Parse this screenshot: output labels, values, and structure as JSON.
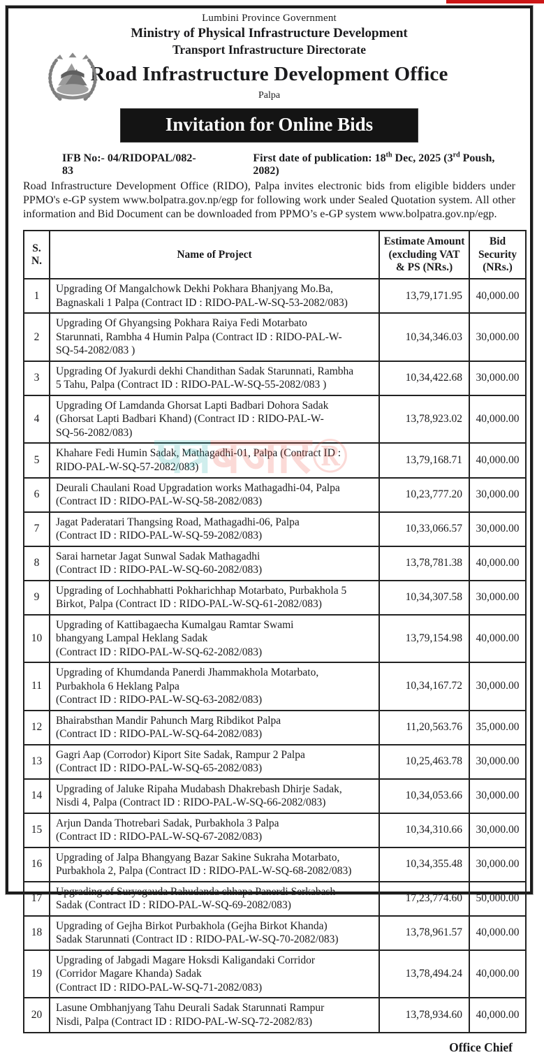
{
  "colors": {
    "banner_background": "#141414",
    "banner_text": "#ffffff",
    "top_bar_red": "#cc1616",
    "watermark_teal": "#2fb6b2",
    "watermark_red": "#ef5a4e",
    "border_black": "#1c1c1c"
  },
  "masthead": {
    "province": "Lumbini Province Government",
    "ministry": "Ministry of Physical Infrastructure Development",
    "directorate": "Transport Infrastructure Directorate",
    "office": "Road Infrastructure Development Office",
    "district": "Palpa",
    "emblem_icon": "nepal-government-emblem"
  },
  "banner": {
    "title": "Invitation for Online Bids"
  },
  "notice": {
    "ifb_no": "IFB No:- 04/RIDOPAL/082-83",
    "pub_prefix": "First date of publication: 18",
    "pub_sup1": "th",
    "pub_mid": " Dec, 2025 (3",
    "pub_sup2": "rd",
    "pub_suffix": "  Poush, 2082)",
    "body": "Road Infrastructure Development Office (RIDO), Palpa invites electronic bids from eligible bidders under PPMO's  e-GP system  www.bolpatra.gov.np/egp for following work under Sealed Quotation system. All other information and Bid Document can be downloaded from PPMO’s e-GP system www.bolpatra.gov.np/egp."
  },
  "table": {
    "headers": {
      "sn": "S.\nN.",
      "project": "Name of Project",
      "estimate": "Estimate Amount\n(excluding VAT\n& PS (NRs.)",
      "security": "Bid\nSecurity\n(NRs.)"
    },
    "rows": [
      {
        "sn": "1",
        "project": "Upgrading Of Mangalchowk Dekhi Pokhara Bhanjyang Mo.Ba,\nBagnaskali 1 Palpa (Contract ID : RIDO-PAL-W-SQ-53-2082/083)",
        "estimate": "13,79,171.95",
        "security": "40,000.00"
      },
      {
        "sn": "2",
        "project": "Upgrading Of  Ghyangsing Pokhara Raiya Fedi Motarbato\nStarunnati, Rambha 4 Humin Palpa (Contract ID : RIDO-PAL-W-\nSQ-54-2082/083 )",
        "estimate": "10,34,346.03",
        "security": "30,000.00"
      },
      {
        "sn": "3",
        "project": "Upgrading Of  Jyakurdi dekhi Chandithan Sadak Starunnati, Rambha\n5 Tahu, Palpa (Contract ID : RIDO-PAL-W-SQ-55-2082/083 )",
        "estimate": "10,34,422.68",
        "security": "30,000.00"
      },
      {
        "sn": "4",
        "project": "Upgrading Of  Lamdanda Ghorsat Lapti Badbari Dohora Sadak\n(Ghorsat Lapti Badbari Khand) (Contract ID : RIDO-PAL-W-\nSQ-56-2082/083)",
        "estimate": "13,78,923.02",
        "security": "40,000.00"
      },
      {
        "sn": "5",
        "project": "Khahare Fedi Humin Sadak, Mathagadhi-01, Palpa (Contract ID :\nRIDO-PAL-W-SQ-57-2082/083)",
        "estimate": "13,79,168.71",
        "security": "40,000.00"
      },
      {
        "sn": "6",
        "project": "Deurali Chaulani Road Upgradation works Mathagadhi-04, Palpa\n(Contract ID : RIDO-PAL-W-SQ-58-2082/083)",
        "estimate": "10,23,777.20",
        "security": "30,000.00"
      },
      {
        "sn": "7",
        "project": "Jagat Paderatari Thangsing Road, Mathagadhi-06, Palpa\n(Contract ID : RIDO-PAL-W-SQ-59-2082/083)",
        "estimate": "10,33,066.57",
        "security": "30,000.00"
      },
      {
        "sn": "8",
        "project": "Sarai harnetar Jagat Sunwal Sadak Mathagadhi\n(Contract ID : RIDO-PAL-W-SQ-60-2082/083)",
        "estimate": "13,78,781.38",
        "security": "40,000.00"
      },
      {
        "sn": "9",
        "project": "Upgrading of Lochhabhatti Pokharichhap Motarbato, Purbakhola 5\nBirkot, Palpa (Contract ID : RIDO-PAL-W-SQ-61-2082/083)",
        "estimate": "10,34,307.58",
        "security": "30,000.00"
      },
      {
        "sn": "10",
        "project": "Upgrading of Kattibagaecha Kumalgau Ramtar Swami\nbhangyang Lampal Heklang Sadak\n(Contract ID : RIDO-PAL-W-SQ-62-2082/083)",
        "estimate": "13,79,154.98",
        "security": "40,000.00"
      },
      {
        "sn": "11",
        "project": "Upgrading of Khumdanda Panerdi Jhammakhola Motarbato,\nPurbakhola 6 Heklang Palpa\n(Contract ID : RIDO-PAL-W-SQ-63-2082/083)",
        "estimate": "10,34,167.72",
        "security": "30,000.00"
      },
      {
        "sn": "12",
        "project": "Bhairabsthan Mandir Pahunch Marg Ribdikot Palpa\n(Contract ID : RIDO-PAL-W-SQ-64-2082/083)",
        "estimate": "11,20,563.76",
        "security": "35,000.00"
      },
      {
        "sn": "13",
        "project": "Gagri Aap (Corrodor) Kiport Site Sadak, Rampur 2 Palpa\n(Contract ID : RIDO-PAL-W-SQ-65-2082/083)",
        "estimate": "10,25,463.78",
        "security": "30,000.00"
      },
      {
        "sn": "14",
        "project": "Upgrading of Jaluke Ripaha Mudabash Dhakrebash Dhirje Sadak,\nNisdi 4, Palpa (Contract ID : RIDO-PAL-W-SQ-66-2082/083)",
        "estimate": "10,34,053.66",
        "security": "30,000.00"
      },
      {
        "sn": "15",
        "project": "Arjun Danda Thotrebari Sadak, Purbakhola 3 Palpa\n(Contract ID : RIDO-PAL-W-SQ-67-2082/083)",
        "estimate": "10,34,310.66",
        "security": "30,000.00"
      },
      {
        "sn": "16",
        "project": "Upgrading of Jalpa Bhangyang Bazar Sakine Sukraha Motarbato,\nPurbakhola 2, Palpa (Contract ID : RIDO-PAL-W-SQ-68-2082/083)",
        "estimate": "10,34,355.48",
        "security": "30,000.00"
      },
      {
        "sn": "17",
        "project": "Upgrading of Suryegauda Rahudanda chhapa Panerdi Serkabash\nSadak (Contract ID : RIDO-PAL-W-SQ-69-2082/083)",
        "estimate": "17,23,774.60",
        "security": "50,000.00"
      },
      {
        "sn": "18",
        "project": "Upgrading of Gejha Birkot Purbakhola (Gejha Birkot Khanda)\nSadak Starunnati (Contract ID : RIDO-PAL-W-SQ-70-2082/083)",
        "estimate": "13,78,961.57",
        "security": "40,000.00"
      },
      {
        "sn": "19",
        "project": "Upgrading of Jabgadi Magare Hoksdi Kaligandaki Corridor\n(Corridor Magare Khanda) Sadak\n(Contract ID : RIDO-PAL-W-SQ-71-2082/083)",
        "estimate": "13,78,494.24",
        "security": "40,000.00"
      },
      {
        "sn": "20",
        "project": "Lasune Ombhanjyang Tahu Deurali Sadak Starunnati Rampur\nNisdi, Palpa (Contract ID : RIDO-PAL-W-SQ-72-2082/83)",
        "estimate": "13,78,934.60",
        "security": "40,000.00"
      }
    ]
  },
  "footer": {
    "signature": "Office Chief"
  },
  "watermark": {
    "teal": "पत्र",
    "red": "बजार®"
  }
}
